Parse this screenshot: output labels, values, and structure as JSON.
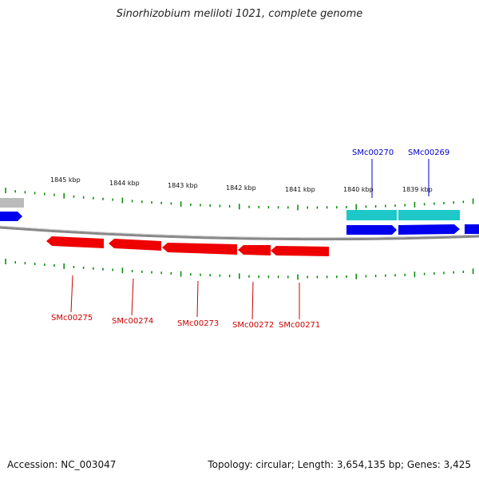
{
  "title": "Sinorhizobium meliloti 1021, complete genome",
  "footer": {
    "accession": "Accession: NC_003047",
    "stats": "Topology: circular; Length: 3,654,135 bp; Genes: 3,425"
  },
  "colors": {
    "forward_gene": "#0000ee",
    "forward_rna": "#1ec8c8",
    "reverse_gene": "#ee0000",
    "tick": "#008800",
    "backbone": "#888888",
    "forward_label": "#0000cc",
    "reverse_label": "#cc0000"
  },
  "scale_labels": [
    "1845 kbp",
    "1844 kbp",
    "1843 kbp",
    "1842 kbp",
    "1841 kbp",
    "1840 kbp",
    "1839 kbp"
  ],
  "forward_labels": [
    "SMc00270",
    "SMc00269"
  ],
  "reverse_labels": [
    "SMc00275",
    "SMc00274",
    "SMc00273",
    "SMc00272",
    "SMc00271"
  ]
}
